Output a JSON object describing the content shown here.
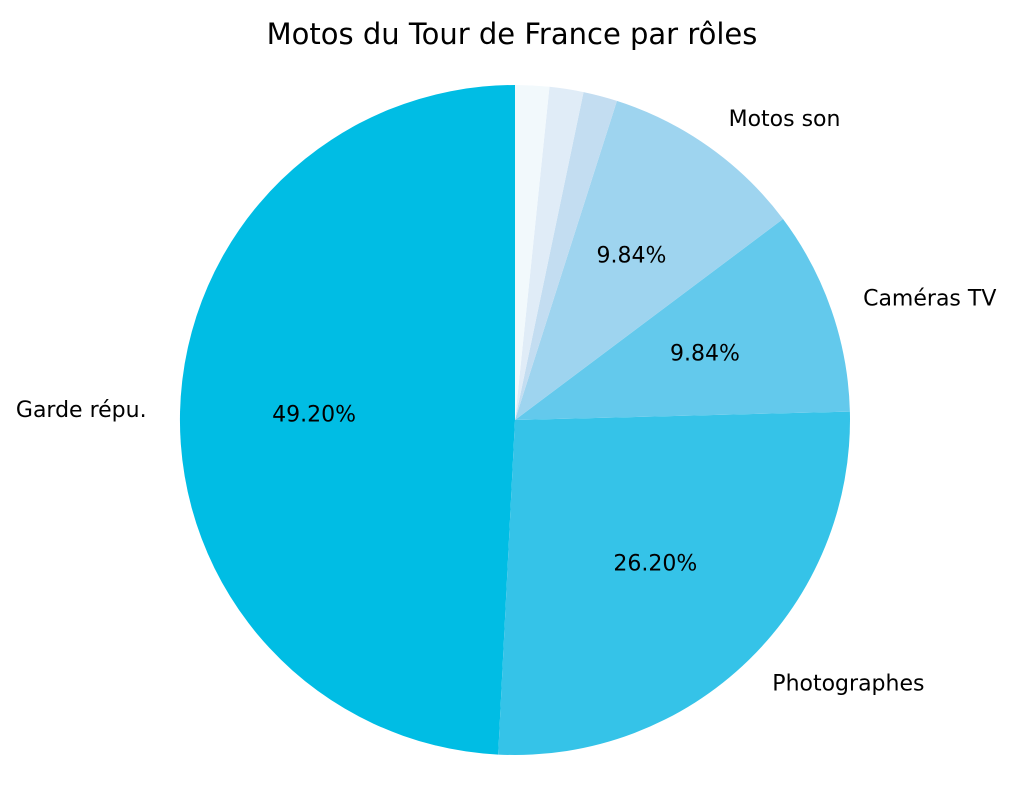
{
  "chart_data": {
    "type": "pie",
    "title": "Motos du Tour de France par rôles",
    "start_angle_deg": 90,
    "counterclockwise": true,
    "legend": "none",
    "background": "#ffffff",
    "text_color": "#000000",
    "slices": [
      {
        "label": "Garde répu.",
        "value": 49.2,
        "pct_label": "49.20%",
        "color": "#00bde4"
      },
      {
        "label": "Photographes",
        "value": 26.2,
        "pct_label": "26.20%",
        "color": "#35c3e8"
      },
      {
        "label": "Caméras TV",
        "value": 9.84,
        "pct_label": "9.84%",
        "color": "#63c9ec"
      },
      {
        "label": "Motos son",
        "value": 9.84,
        "pct_label": "9.84%",
        "color": "#9ed4ef"
      },
      {
        "label": "",
        "value": 1.64,
        "pct_label": "",
        "color": "#c3ddf1"
      },
      {
        "label": "",
        "value": 1.64,
        "pct_label": "",
        "color": "#e0ecf7"
      },
      {
        "label": "",
        "value": 1.64,
        "pct_label": "",
        "color": "#f2f9fc"
      }
    ]
  }
}
